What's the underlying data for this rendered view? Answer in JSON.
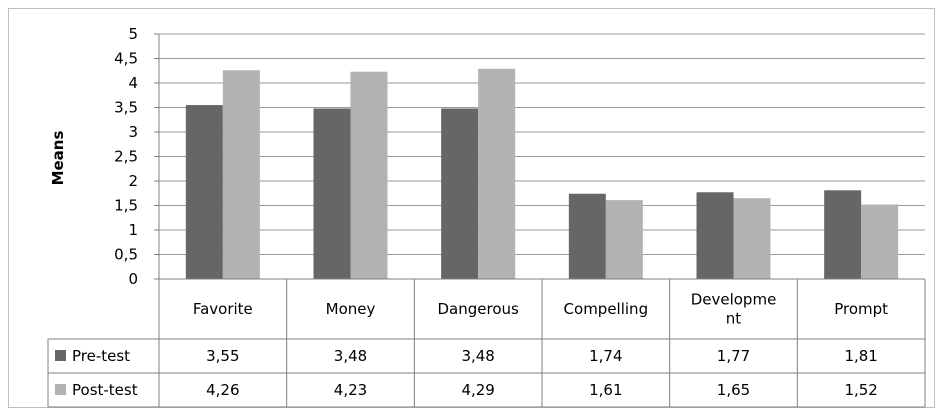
{
  "chart_data": {
    "type": "bar",
    "title": "",
    "xlabel": "",
    "ylabel": "Means",
    "ylim": [
      0,
      5
    ],
    "yticks": [
      "0",
      "0,5",
      "1",
      "1,5",
      "2",
      "2,5",
      "3",
      "3,5",
      "4",
      "4,5",
      "5"
    ],
    "grid": true,
    "legend": "data-table-left",
    "categories": [
      "Favorite",
      "Money",
      "Dangerous",
      "Compelling",
      "Developme nt",
      "Prompt"
    ],
    "series": [
      {
        "name": "Pre-test",
        "values": [
          3.55,
          3.48,
          3.48,
          1.74,
          1.77,
          1.81
        ],
        "labels": [
          "3,55",
          "3,48",
          "3,48",
          "1,74",
          "1,77",
          "1,81"
        ],
        "color": "#666666"
      },
      {
        "name": "Post-test",
        "values": [
          4.26,
          4.23,
          4.29,
          1.61,
          1.65,
          1.52
        ],
        "labels": [
          "4,26",
          "4,23",
          "4,29",
          "1,61",
          "1,65",
          "1,52"
        ],
        "color": "#b2b2b2"
      }
    ]
  }
}
